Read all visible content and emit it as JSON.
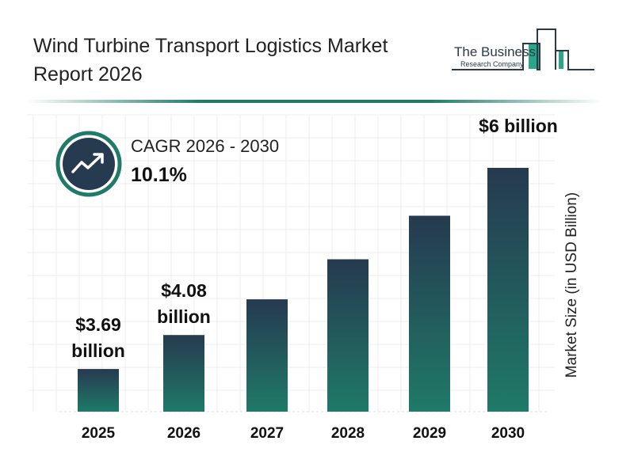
{
  "title_line1": "Wind Turbine Transport Logistics Market",
  "title_line2": "Report 2026",
  "logo": {
    "line1": "The Business",
    "line2": "Research Company"
  },
  "cagr": {
    "label": "CAGR 2026 - 2030",
    "value": "10.1%",
    "icon": "trending-up-icon"
  },
  "colors": {
    "bar_top": "#263a50",
    "bar_bottom": "#1f7a68",
    "accent": "#1f7a68"
  },
  "chart_data": {
    "type": "bar",
    "categories": [
      "2025",
      "2026",
      "2027",
      "2028",
      "2029",
      "2030"
    ],
    "values": [
      3.69,
      4.08,
      4.49,
      4.95,
      5.45,
      6.0
    ],
    "data_labels": [
      "$3.69 billion",
      "$4.08 billion",
      "",
      "",
      "",
      "$6 billion"
    ],
    "ylabel": "Market Size (in USD Billion)",
    "grid": true
  }
}
